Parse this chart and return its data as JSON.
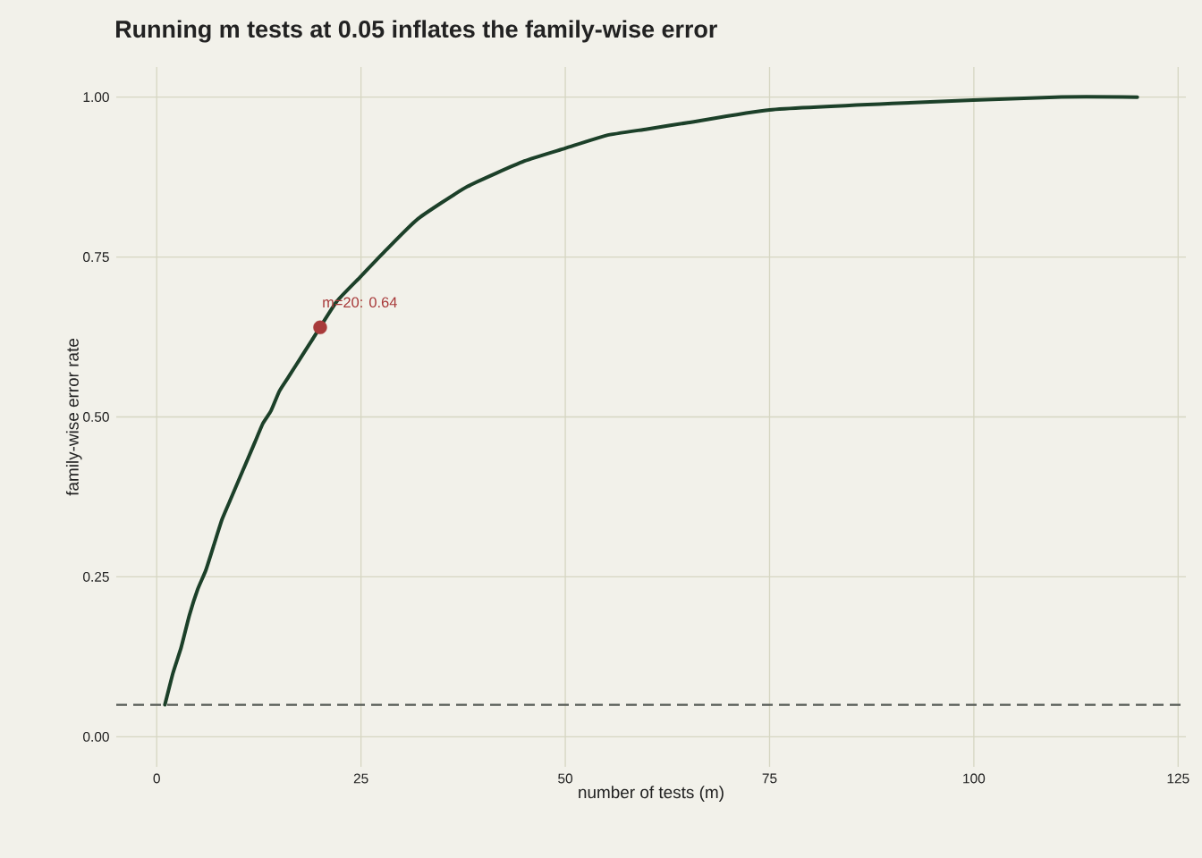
{
  "chart_data": {
    "type": "line",
    "title": "Running m tests at 0.05 inflates the family-wise error",
    "xlabel": "number of tests (m)",
    "ylabel": "family-wise error rate",
    "series": [
      {
        "color": "#1c4029",
        "marker": "none",
        "x": [
          1,
          2,
          3,
          4,
          5,
          6,
          7,
          8,
          9,
          10,
          11,
          12,
          13,
          14,
          15,
          16,
          17,
          18,
          19,
          22,
          25,
          28,
          32,
          38,
          45,
          50,
          55,
          60,
          65,
          75,
          90,
          110,
          120
        ],
        "values": [
          0.05,
          0.1,
          0.14,
          0.19,
          0.23,
          0.26,
          0.3,
          0.34,
          0.37,
          0.4,
          0.43,
          0.46,
          0.49,
          0.51,
          0.54,
          0.56,
          0.58,
          0.6,
          0.62,
          0.68,
          0.72,
          0.76,
          0.81,
          0.86,
          0.9,
          0.92,
          0.94,
          0.95,
          0.96,
          0.98,
          0.99,
          1.0,
          1.0
        ]
      },
      {
        "type": "scatter",
        "color": "#a83a3a",
        "marker": "circle",
        "x": [
          20
        ],
        "values": [
          0.64
        ]
      }
    ],
    "annotations": [
      {
        "text": "m=20: 0.64",
        "x": 20,
        "y": 0.64
      }
    ],
    "ref_lines": [
      {
        "axis": "y",
        "value": 0.05,
        "color": "#555a55",
        "line_style": "dashed"
      }
    ],
    "xlim": [
      -4.95,
      125.95
    ],
    "ylim": [
      -0.047,
      1.047
    ],
    "xticks": [
      0,
      25,
      50,
      75,
      100,
      125
    ],
    "yticks": [
      {
        "value": 0,
        "label": "0.00"
      },
      {
        "value": 0.25,
        "label": "0.25"
      },
      {
        "value": 0.5,
        "label": "0.50"
      },
      {
        "value": 0.75,
        "label": "0.75"
      },
      {
        "value": 1,
        "label": "1.00"
      }
    ],
    "grid": true
  }
}
